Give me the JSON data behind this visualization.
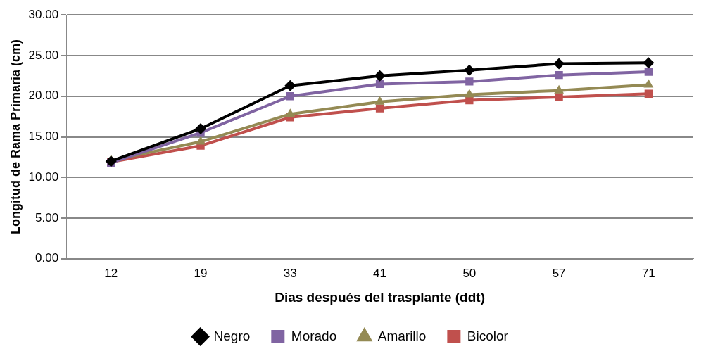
{
  "chart_data": {
    "type": "line",
    "xlabel": "Dias después del trasplante (ddt)",
    "ylabel": "Longitud de Rama Primaria (cm)",
    "categories": [
      "12",
      "19",
      "33",
      "41",
      "50",
      "57",
      "71"
    ],
    "series": [
      {
        "name": "Negro",
        "color": "#000000",
        "marker": "diamond",
        "values": [
          12.0,
          16.0,
          21.3,
          22.5,
          23.2,
          24.0,
          24.1
        ]
      },
      {
        "name": "Morado",
        "color": "#8064a2",
        "marker": "square",
        "values": [
          11.8,
          15.5,
          20.0,
          21.5,
          21.8,
          22.6,
          23.0
        ]
      },
      {
        "name": "Amarillo",
        "color": "#948a54",
        "marker": "triangle",
        "values": [
          12.1,
          14.4,
          17.8,
          19.3,
          20.2,
          20.7,
          21.4
        ]
      },
      {
        "name": "Bicolor",
        "color": "#c0504d",
        "marker": "square",
        "values": [
          11.9,
          13.9,
          17.4,
          18.5,
          19.5,
          19.9,
          20.3
        ]
      }
    ],
    "ylim": [
      0,
      30
    ],
    "yticks": [
      {
        "value": 0,
        "label": "0.00"
      },
      {
        "value": 5,
        "label": "5.00"
      },
      {
        "value": 10,
        "label": "10.00"
      },
      {
        "value": 15,
        "label": "15.00"
      },
      {
        "value": 20,
        "label": "20.00"
      },
      {
        "value": 25,
        "label": "25.00"
      },
      {
        "value": 30,
        "label": "30.00"
      }
    ],
    "grid": "y",
    "legend": "bottom"
  }
}
